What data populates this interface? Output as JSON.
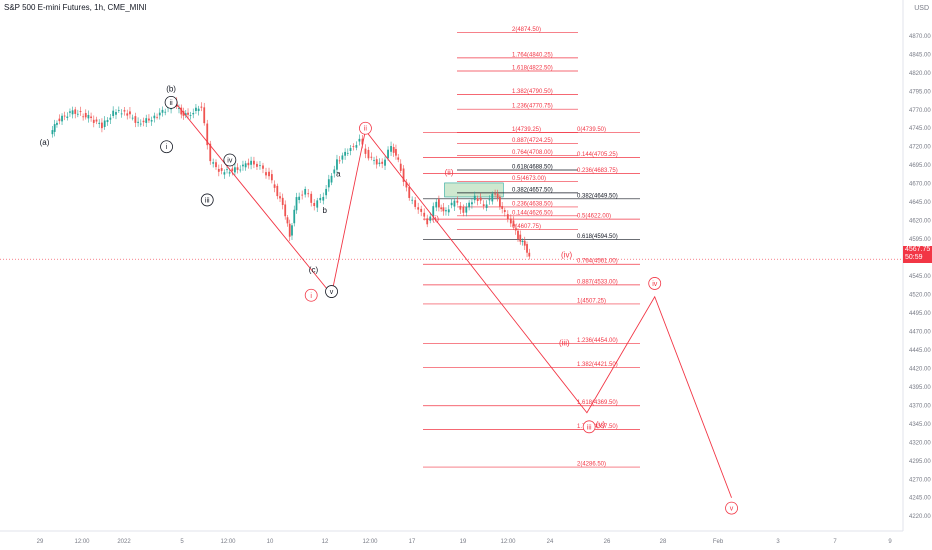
{
  "header": {
    "title": "S&P 500 E-mini Futures, 1h, CME_MINI",
    "currency": "USD",
    "last_price": "4567.75",
    "countdown": "50:59"
  },
  "colors": {
    "up": "#26a69a",
    "down": "#ef5350",
    "wave": "#f23645",
    "fib_red": "#f23645",
    "fib_black": "#131722",
    "box_fill": "#a5d6a7",
    "label_dark": "#131722",
    "axis_text": "#787b86"
  },
  "chart_data": {
    "type": "candlestick",
    "title": "S&P 500 E-mini Futures, 1h, CME_MINI",
    "x_ticks": [
      "29",
      "12:00",
      "2022",
      "5",
      "12:00",
      "10",
      "12",
      "12:00",
      "17",
      "19",
      "12:00",
      "24",
      "26",
      "28",
      "Feb",
      "3",
      "7",
      "9"
    ],
    "y_ticks": [
      4870,
      4845,
      4820,
      4795,
      4770,
      4745,
      4720,
      4695,
      4670,
      4645,
      4620,
      4595,
      4570,
      4545,
      4520,
      4495,
      4470,
      4445,
      4420,
      4395,
      4370,
      4345,
      4320,
      4295,
      4270,
      4245,
      4220
    ],
    "y_range": [
      4200,
      4905
    ],
    "last_price": 4567.75,
    "price_path": [
      [
        "28.5",
        4735
      ],
      [
        "28.8",
        4755
      ],
      [
        "29.5",
        4768
      ],
      [
        "30.2",
        4760
      ],
      [
        "30.8",
        4748
      ],
      [
        "31.3",
        4766
      ],
      [
        "31.8",
        4768
      ],
      [
        "32.4",
        4752
      ],
      [
        "33",
        4758
      ],
      [
        "33.6",
        4770
      ],
      [
        "34",
        4778
      ],
      [
        "34.3",
        4766
      ],
      [
        "34.6",
        4762
      ],
      [
        "35.2",
        4775
      ],
      [
        "35.6",
        4700
      ],
      [
        "36.1",
        4685
      ],
      [
        "36.8",
        4690
      ],
      [
        "37.4",
        4700
      ],
      [
        "37.8",
        4692
      ],
      [
        "38.2",
        4680
      ],
      [
        "38.8",
        4640
      ],
      [
        "39.1",
        4600
      ],
      [
        "39.4",
        4650
      ],
      [
        "39.8",
        4660
      ],
      [
        "40.2",
        4640
      ],
      [
        "40.6",
        4655
      ],
      [
        "41.2",
        4700
      ],
      [
        "41.8",
        4718
      ],
      [
        "42.2",
        4728
      ],
      [
        "42.6",
        4705
      ],
      [
        "43.2",
        4695
      ],
      [
        "43.6",
        4722
      ],
      [
        "43.9",
        4700
      ],
      [
        "44.4",
        4650
      ],
      [
        "44.8",
        4636
      ],
      [
        "45.2",
        4618
      ],
      [
        "45.6",
        4646
      ],
      [
        "45.9",
        4630
      ],
      [
        "46.4",
        4646
      ],
      [
        "46.8",
        4632
      ],
      [
        "47.3",
        4653
      ],
      [
        "47.7",
        4640
      ],
      [
        "48.2",
        4658
      ],
      [
        "48.5",
        4634
      ],
      [
        "48.9",
        4618
      ],
      [
        "49.2",
        4598
      ],
      [
        "49.5",
        4586
      ],
      [
        "49.7",
        4572
      ]
    ],
    "waves": {
      "black": [
        [
          "(a)",
          "28.2",
          4722
        ],
        [
          "(b)",
          "33.8",
          4795
        ],
        [
          "(c)",
          "40.1",
          4550
        ],
        [
          "a",
          "41.2",
          4680
        ],
        [
          "b",
          "40.6",
          4630
        ],
        [
          "c",
          "42.4",
          4743
        ]
      ],
      "circled_black": [
        [
          "ii",
          "33.8",
          4780
        ],
        [
          "i",
          "33.6",
          4720
        ],
        [
          "iv",
          "36.4",
          4702
        ],
        [
          "iii",
          "35.4",
          4648
        ],
        [
          "v",
          "40.9",
          4524
        ]
      ],
      "circled_red": [
        [
          "i",
          "40.0",
          4519
        ],
        [
          "ii",
          "42.4",
          4745
        ],
        [
          "iii",
          "52.3",
          4341
        ],
        [
          "iv",
          "55.2",
          4535
        ],
        [
          "v",
          "58.6",
          4231
        ]
      ],
      "red": [
        [
          "(i)",
          "45.5",
          4619
        ],
        [
          "(ii)",
          "46.1",
          4682
        ],
        [
          "(iii)",
          "51.2",
          4451
        ],
        [
          "(iv)",
          "51.3",
          4570
        ],
        [
          "(v)",
          "52.8",
          4341
        ]
      ],
      "zigzag_black_circled": [
        [
          "33.9",
          4783
        ],
        [
          "40.9",
          4520
        ],
        [
          "42.4",
          4742
        ]
      ],
      "projection_red": [
        [
          "42.4",
          4742
        ],
        [
          "52.2",
          4360
        ],
        [
          "55.2",
          4517
        ],
        [
          "58.6",
          4245
        ]
      ]
    },
    "fib_levels": [
      {
        "label": "2(4874.50)",
        "color": "red"
      },
      {
        "label": "1.764(4840.25)",
        "color": "red"
      },
      {
        "label": "1.618(4822.50)",
        "color": "red"
      },
      {
        "label": "1.382(4790.50)",
        "color": "red"
      },
      {
        "label": "1.236(4770.75)",
        "color": "red"
      },
      {
        "label": "1(4739.25)",
        "color": "red"
      },
      {
        "label": "0(4739.50)",
        "color": "red"
      },
      {
        "label": "0.887(4724.25)",
        "color": "red"
      },
      {
        "label": "0.764(4708.00)",
        "color": "red"
      },
      {
        "label": "0.144(4705.25)",
        "color": "red"
      },
      {
        "label": "0.618(4688.50)",
        "color": "black"
      },
      {
        "label": "0.236(4683.75)",
        "color": "red"
      },
      {
        "label": "0.5(4673.00)",
        "color": "red"
      },
      {
        "label": "0.382(4657.50)",
        "color": "black"
      },
      {
        "label": "0.382(4649.50)",
        "color": "black"
      },
      {
        "label": "0.236(4638.50)",
        "color": "red"
      },
      {
        "label": "0.144(4626.50)",
        "color": "red"
      },
      {
        "label": "0.5(4622.00)",
        "color": "red"
      },
      {
        "label": "0(4607.75)",
        "color": "red"
      },
      {
        "label": "0.618(4594.50)",
        "color": "black"
      },
      {
        "label": "0.764(4561.00)",
        "color": "red"
      },
      {
        "label": "0.887(4533.00)",
        "color": "red"
      },
      {
        "label": "1(4507.25)",
        "color": "red"
      },
      {
        "label": "1.236(4454.00)",
        "color": "red"
      },
      {
        "label": "1.382(4421.50)",
        "color": "red"
      },
      {
        "label": "1.618(4369.50)",
        "color": "red"
      },
      {
        "label": "1.764(4337.50)",
        "color": "red"
      },
      {
        "label": "2(4286.50)",
        "color": "red"
      }
    ],
    "zone_box": {
      "top": 4671,
      "bottom": 4652
    },
    "grid": false
  }
}
